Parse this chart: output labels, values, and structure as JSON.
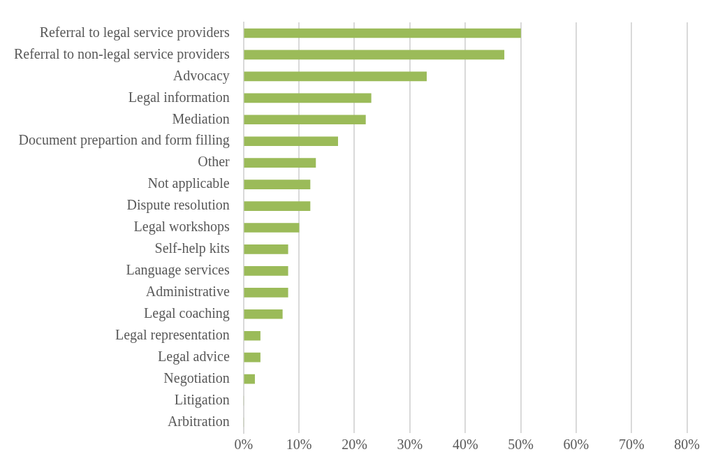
{
  "chart_data": {
    "type": "bar",
    "orientation": "horizontal",
    "categories": [
      "Referral to legal service providers",
      "Referral to non-legal service providers",
      "Advocacy",
      "Legal information",
      "Mediation",
      "Document prepartion and form filling",
      "Other",
      "Not applicable",
      "Dispute resolution",
      "Legal workshops",
      "Self-help kits",
      "Language services",
      "Administrative",
      "Legal coaching",
      "Legal representation",
      "Legal advice",
      "Negotiation",
      "Litigation",
      "Arbitration"
    ],
    "values": [
      50,
      47,
      33,
      23,
      22,
      17,
      13,
      12,
      12,
      10,
      8,
      8,
      8,
      7,
      3,
      3,
      2,
      0,
      0
    ],
    "color": "#9bbb59",
    "xlim": [
      0,
      80
    ],
    "xticks": [
      {
        "value": 0,
        "label": "0%"
      },
      {
        "value": 10,
        "label": "10%"
      },
      {
        "value": 20,
        "label": "20%"
      },
      {
        "value": 30,
        "label": "30%"
      },
      {
        "value": 40,
        "label": "40%"
      },
      {
        "value": 50,
        "label": "50%"
      },
      {
        "value": 60,
        "label": "60%"
      },
      {
        "value": 70,
        "label": "70%"
      },
      {
        "value": 80,
        "label": "80%"
      }
    ],
    "grid": "x",
    "legend": false
  }
}
